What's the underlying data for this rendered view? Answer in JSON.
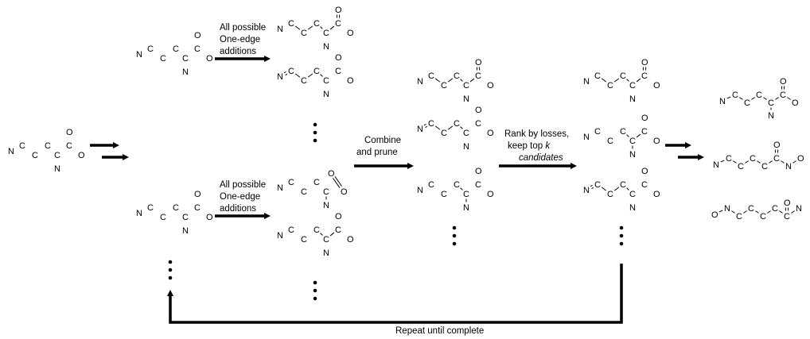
{
  "labels": {
    "one_edge_top": [
      "All possible",
      "One-edge",
      "additions"
    ],
    "one_edge_bottom": [
      "All possible",
      "One-edge",
      "additions"
    ],
    "combine": [
      "Combine",
      "and prune"
    ],
    "rank_line1": "Rank by losses,",
    "rank_line2_pre": "keep top ",
    "rank_k": "k",
    "rank_line3": "candidates",
    "repeat": "Repeat until complete"
  },
  "atoms": {
    "n": "N",
    "c": "C",
    "o": "O"
  }
}
